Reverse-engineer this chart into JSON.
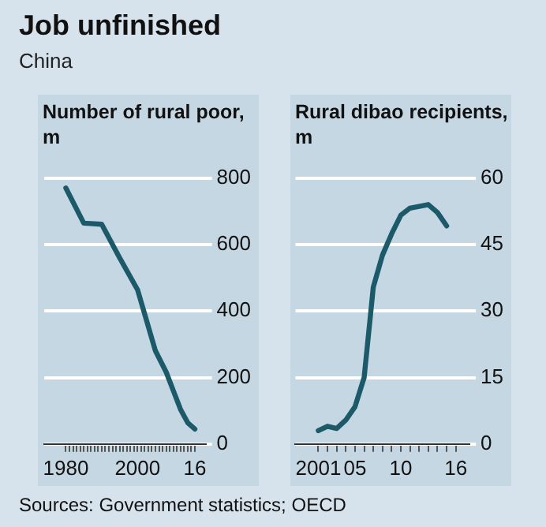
{
  "chart_data": [
    {
      "type": "line",
      "title": "Job unfinished",
      "subtitle": "China",
      "ylabel": "Number of rural poor, m",
      "annotations": [
        "Sources: Government statistics; OECD"
      ],
      "x": [
        1980,
        1985,
        1990,
        1995,
        2000,
        2005,
        2008,
        2010,
        2012,
        2014,
        2016
      ],
      "series": [
        {
          "color": "#1d5a69",
          "values": [
            770,
            664,
            661,
            560,
            464,
            280,
            216,
            160,
            104,
            64,
            45
          ]
        }
      ],
      "xlim": [
        1974,
        2019
      ],
      "xticks": [
        1980,
        {
          "value": 1981,
          "label": null
        },
        {
          "value": 1982,
          "label": null
        },
        {
          "value": 1983,
          "label": null
        },
        {
          "value": 1984,
          "label": null
        },
        {
          "value": 1985,
          "label": null
        },
        {
          "value": 1986,
          "label": null
        },
        {
          "value": 1987,
          "label": null
        },
        {
          "value": 1988,
          "label": null
        },
        {
          "value": 1989,
          "label": null
        },
        {
          "value": 1990,
          "label": null
        },
        {
          "value": 1991,
          "label": null
        },
        {
          "value": 1992,
          "label": null
        },
        {
          "value": 1993,
          "label": null
        },
        {
          "value": 1994,
          "label": null
        },
        {
          "value": 1995,
          "label": null
        },
        {
          "value": 1996,
          "label": null
        },
        {
          "value": 1997,
          "label": null
        },
        {
          "value": 1998,
          "label": null
        },
        {
          "value": 1999,
          "label": null
        },
        2000,
        {
          "value": 2001,
          "label": null
        },
        {
          "value": 2002,
          "label": null
        },
        {
          "value": 2003,
          "label": null
        },
        {
          "value": 2004,
          "label": null
        },
        {
          "value": 2005,
          "label": null
        },
        {
          "value": 2006,
          "label": null
        },
        {
          "value": 2007,
          "label": null
        },
        {
          "value": 2008,
          "label": null
        },
        {
          "value": 2009,
          "label": null
        },
        {
          "value": 2010,
          "label": null
        },
        {
          "value": 2011,
          "label": null
        },
        {
          "value": 2012,
          "label": null
        },
        {
          "value": 2013,
          "label": null
        },
        {
          "value": 2014,
          "label": null
        },
        {
          "value": 2015,
          "label": null
        },
        {
          "value": 2016,
          "label": "16"
        }
      ],
      "ylim": [
        0,
        800
      ],
      "yticks": [
        0,
        200,
        400,
        600,
        800
      ],
      "grid": "y",
      "marker": "none",
      "line_style": "solid"
    },
    {
      "type": "line",
      "ylabel": "Rural dibao recipients, m",
      "x": [
        2001,
        2002,
        2003,
        2004,
        2005,
        2006,
        2007,
        2008,
        2009,
        2010,
        2011,
        2012,
        2013,
        2014,
        2015
      ],
      "series": [
        {
          "color": "#1d5a69",
          "values": [
            3,
            4,
            3.5,
            5.4,
            8.4,
            15,
            35.4,
            42.6,
            47.4,
            51.6,
            53.2,
            53.6,
            54,
            52.2,
            49.2
          ]
        }
      ],
      "xlim": [
        1998.5,
        2017.5
      ],
      "xticks": [
        2001,
        {
          "value": 2002,
          "label": null
        },
        {
          "value": 2003,
          "label": null
        },
        {
          "value": 2004,
          "label": null
        },
        {
          "value": 2005,
          "label": "05"
        },
        {
          "value": 2006,
          "label": null
        },
        {
          "value": 2007,
          "label": null
        },
        {
          "value": 2008,
          "label": null
        },
        {
          "value": 2009,
          "label": null
        },
        {
          "value": 2010,
          "label": "10"
        },
        {
          "value": 2011,
          "label": null
        },
        {
          "value": 2012,
          "label": null
        },
        {
          "value": 2013,
          "label": null
        },
        {
          "value": 2014,
          "label": null
        },
        {
          "value": 2015,
          "label": null
        },
        {
          "value": 2016,
          "label": "16"
        }
      ],
      "ylim": [
        0,
        60
      ],
      "yticks": [
        0,
        15,
        30,
        45,
        60
      ],
      "grid": "y",
      "marker": "none",
      "line_style": "solid"
    }
  ]
}
